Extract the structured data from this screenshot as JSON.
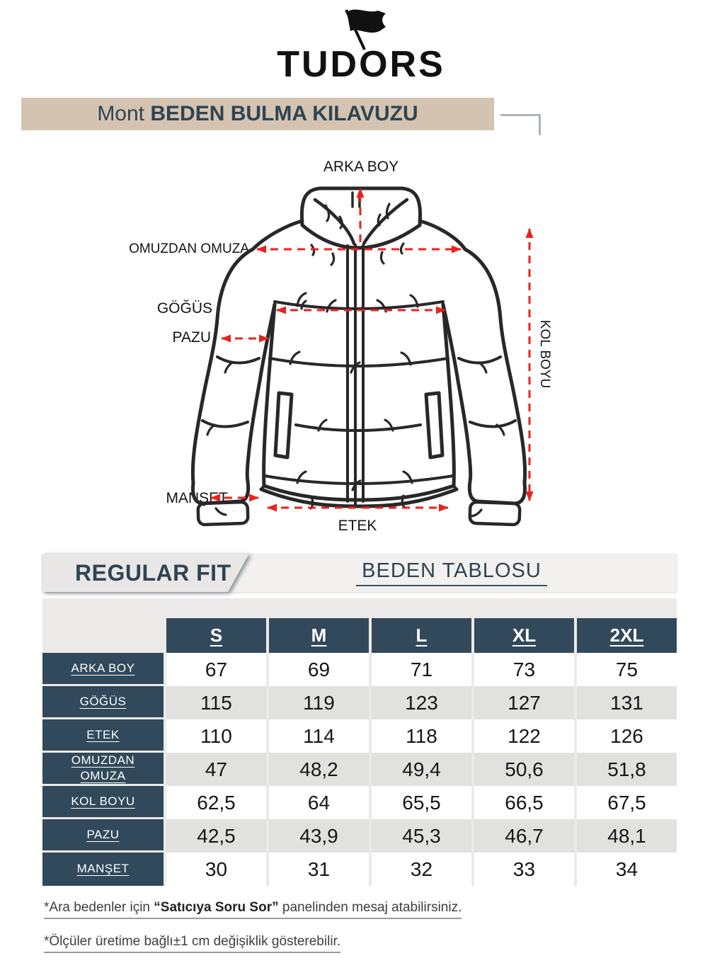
{
  "brand": {
    "name": "TUDORS",
    "icon": "flag-icon"
  },
  "header": {
    "product": "Mont",
    "title": "BEDEN BULMA KILAVUZU"
  },
  "diagram": {
    "labels": {
      "arka_boy": "ARKA BOY",
      "omuzdan_omuza": "OMUZDAN OMUZA",
      "gogus": "GÖĞÜS",
      "pazu": "PAZU",
      "kol_boyu": "KOL BOYU",
      "manset": "MANŞET",
      "etek": "ETEK"
    },
    "arrow_color": "#E8231E",
    "outline_color": "#282828"
  },
  "size_table": {
    "fit_label": "REGULAR FIT",
    "table_title": "BEDEN TABLOSU",
    "columns": [
      "S",
      "M",
      "L",
      "XL",
      "2XL"
    ],
    "rows": [
      {
        "label": "ARKA BOY",
        "values": [
          "67",
          "69",
          "71",
          "73",
          "75"
        ]
      },
      {
        "label": "GÖĞÜS",
        "values": [
          "115",
          "119",
          "123",
          "127",
          "131"
        ]
      },
      {
        "label": "ETEK",
        "values": [
          "110",
          "114",
          "118",
          "122",
          "126"
        ]
      },
      {
        "label": "OMUZDAN OMUZA",
        "values": [
          "47",
          "48,2",
          "49,4",
          "50,6",
          "51,8"
        ]
      },
      {
        "label": "KOL BOYU",
        "values": [
          "62,5",
          "64",
          "65,5",
          "66,5",
          "67,5"
        ]
      },
      {
        "label": "PAZU",
        "values": [
          "42,5",
          "43,9",
          "45,3",
          "46,7",
          "48,1"
        ]
      },
      {
        "label": "MANŞET",
        "values": [
          "30",
          "31",
          "32",
          "33",
          "34"
        ]
      }
    ],
    "colors": {
      "navy": "#31495A",
      "row_alt": "#E1E1E0",
      "band_beige": "#D5C3B1"
    }
  },
  "footnotes": [
    [
      {
        "text": "*Ara bedenler için ",
        "bold": false
      },
      {
        "text": "“Satıcıya Soru Sor”",
        "bold": true
      },
      {
        "text": " panelinden mesaj atabilirsiniz.",
        "bold": false
      }
    ],
    [
      {
        "text": "*Ölçüler üretime bağlı±1 cm değişiklik gösterebilir.",
        "bold": false
      }
    ]
  ]
}
